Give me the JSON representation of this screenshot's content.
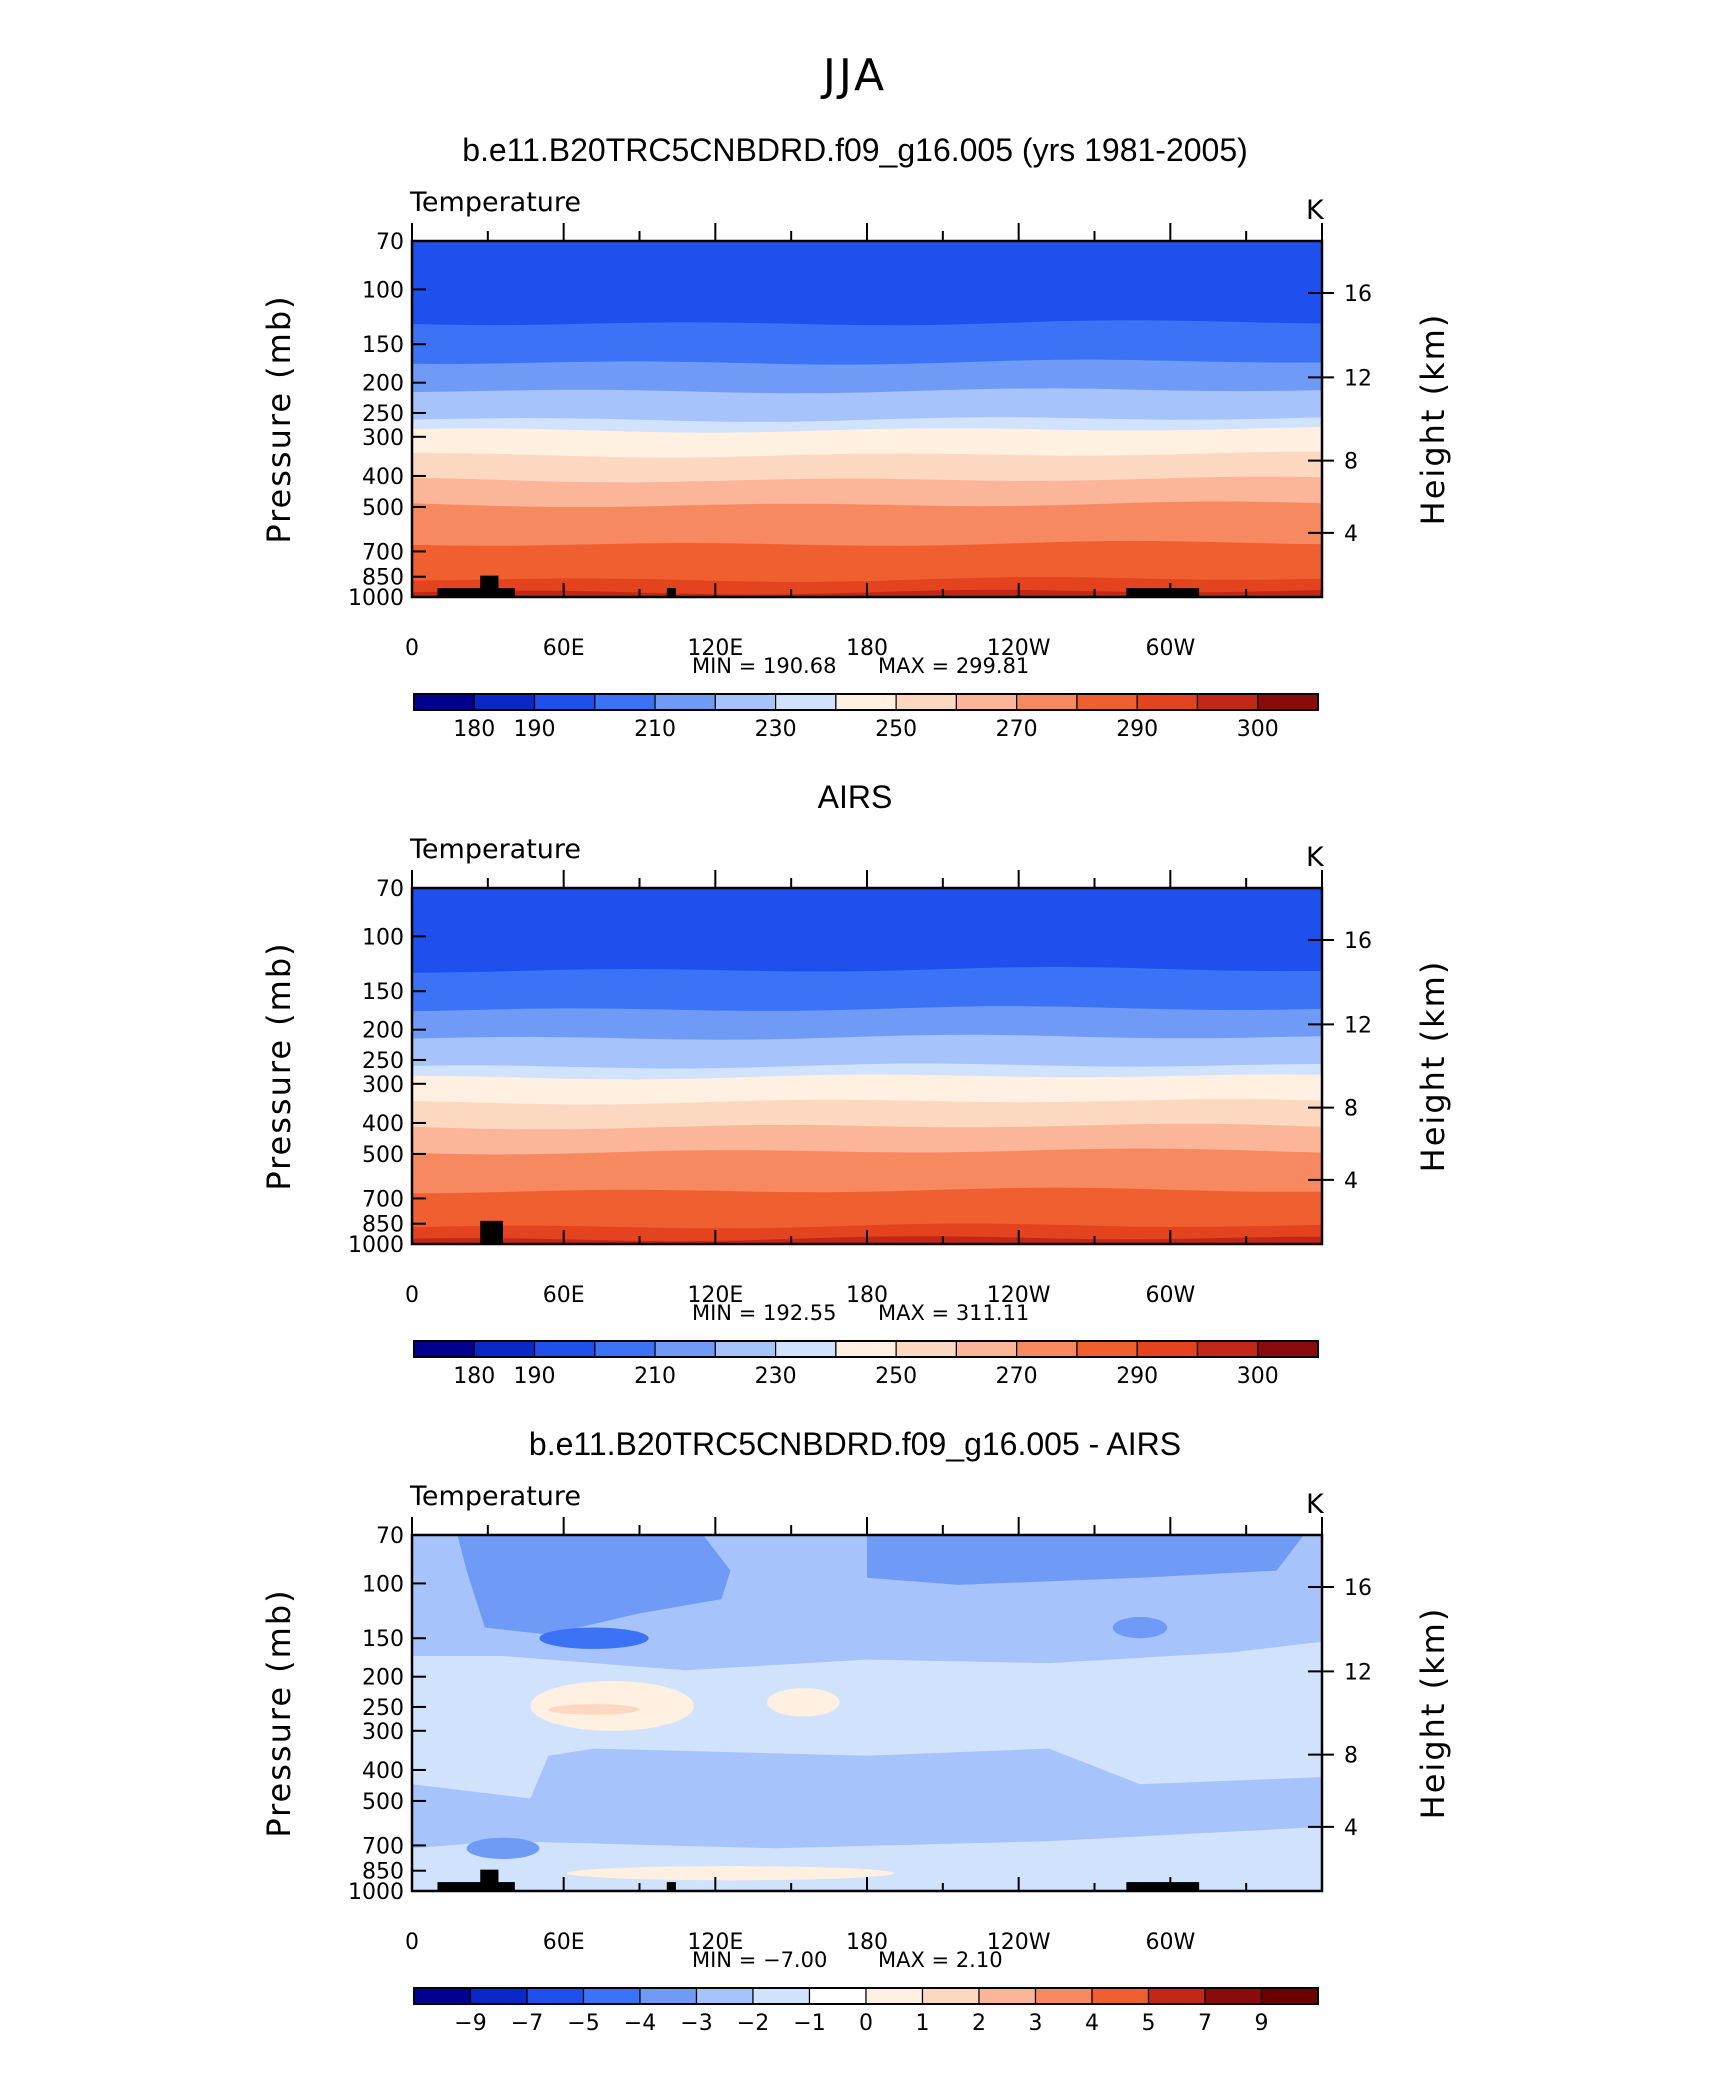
{
  "main_title": "JJA",
  "colors": {
    "temp_levels": [
      "#00008f",
      "#0a28c8",
      "#1f4fed",
      "#3c72f5",
      "#6f9bf7",
      "#a6c4fb",
      "#d0e2fc",
      "#fff0e1",
      "#fdd8c1",
      "#fbb598",
      "#f6895f",
      "#f05f2f",
      "#e3431f",
      "#c32717",
      "#8a0b0b"
    ],
    "diff_levels": [
      "#00008f",
      "#0a28c8",
      "#1f4fed",
      "#3c72f5",
      "#6f9bf7",
      "#a6c4fb",
      "#d0e2fc",
      "#ffffff",
      "#fff0e1",
      "#fdd8c1",
      "#fbb598",
      "#f6895f",
      "#f05f2f",
      "#c32717",
      "#8a0b0b",
      "#6b0000"
    ],
    "topography": "#000000"
  },
  "chart_data": [
    {
      "type": "heatmap",
      "title": "b.e11.B20TRC5CNBDRD.f09_g16.005 (yrs 1981-2005)",
      "left_label": "Temperature",
      "right_label": "K",
      "ylabel": "Pressure (mb)",
      "ylabel_right": "Height (km)",
      "y_ticks": [
        "70",
        "100",
        "150",
        "200",
        "250",
        "300",
        "400",
        "500",
        "700",
        "850",
        "1000"
      ],
      "y_ticks_right": [
        "16",
        "12",
        "8",
        "4"
      ],
      "x_ticks": [
        "0",
        "60E",
        "120E",
        "180",
        "120W",
        "60W"
      ],
      "min_label": "MIN = 190.68",
      "max_label": "MAX = 299.81",
      "min": 190.68,
      "max": 299.81,
      "colorbar_ticks": [
        "180",
        "190",
        "210",
        "230",
        "250",
        "270",
        "290",
        "300"
      ],
      "colorbar_type": "temp"
    },
    {
      "type": "heatmap",
      "title": "AIRS",
      "left_label": "Temperature",
      "right_label": "K",
      "ylabel": "Pressure (mb)",
      "ylabel_right": "Height (km)",
      "y_ticks": [
        "70",
        "100",
        "150",
        "200",
        "250",
        "300",
        "400",
        "500",
        "700",
        "850",
        "1000"
      ],
      "y_ticks_right": [
        "16",
        "12",
        "8",
        "4"
      ],
      "x_ticks": [
        "0",
        "60E",
        "120E",
        "180",
        "120W",
        "60W"
      ],
      "min_label": "MIN = 192.55",
      "max_label": "MAX = 311.11",
      "min": 192.55,
      "max": 311.11,
      "colorbar_ticks": [
        "180",
        "190",
        "210",
        "230",
        "250",
        "270",
        "290",
        "300"
      ],
      "colorbar_type": "temp"
    },
    {
      "type": "heatmap",
      "title": "b.e11.B20TRC5CNBDRD.f09_g16.005 - AIRS",
      "left_label": "Temperature",
      "right_label": "K",
      "ylabel": "Pressure (mb)",
      "ylabel_right": "Height (km)",
      "y_ticks": [
        "70",
        "100",
        "150",
        "200",
        "250",
        "300",
        "400",
        "500",
        "700",
        "850",
        "1000"
      ],
      "y_ticks_right": [
        "16",
        "12",
        "8",
        "4"
      ],
      "x_ticks": [
        "0",
        "60E",
        "120E",
        "180",
        "120W",
        "60W"
      ],
      "min_label": "MIN = −7.00",
      "max_label": "MAX = 2.10",
      "min": -7.0,
      "max": 2.1,
      "colorbar_ticks": [
        "−9",
        "−7",
        "−5",
        "−4",
        "−3",
        "−2",
        "−1",
        "0",
        "1",
        "2",
        "3",
        "4",
        "5",
        "7",
        "9"
      ],
      "colorbar_type": "diff"
    }
  ]
}
